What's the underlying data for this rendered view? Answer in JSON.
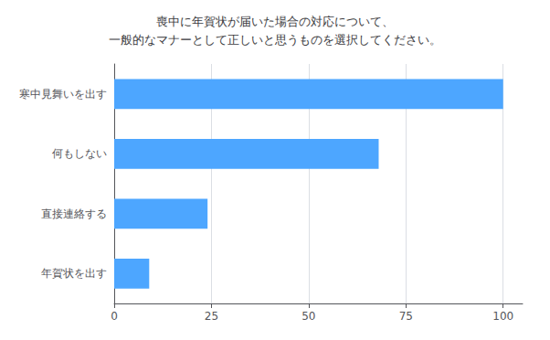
{
  "chart_data": {
    "type": "bar",
    "orientation": "horizontal",
    "title": "喪中に年賀状が届いた場合の対応について、\n一般的なマナーとして正しいと思うものを選択してください。",
    "categories": [
      "年賀状を出す",
      "直接連絡する",
      "何もしない",
      "寒中見舞いを出す"
    ],
    "values": [
      9,
      24,
      68,
      100
    ],
    "color": "#4da6ff",
    "xlim": [
      0,
      105
    ],
    "xticks": [
      0,
      25,
      50,
      75,
      100
    ],
    "grid": true
  }
}
